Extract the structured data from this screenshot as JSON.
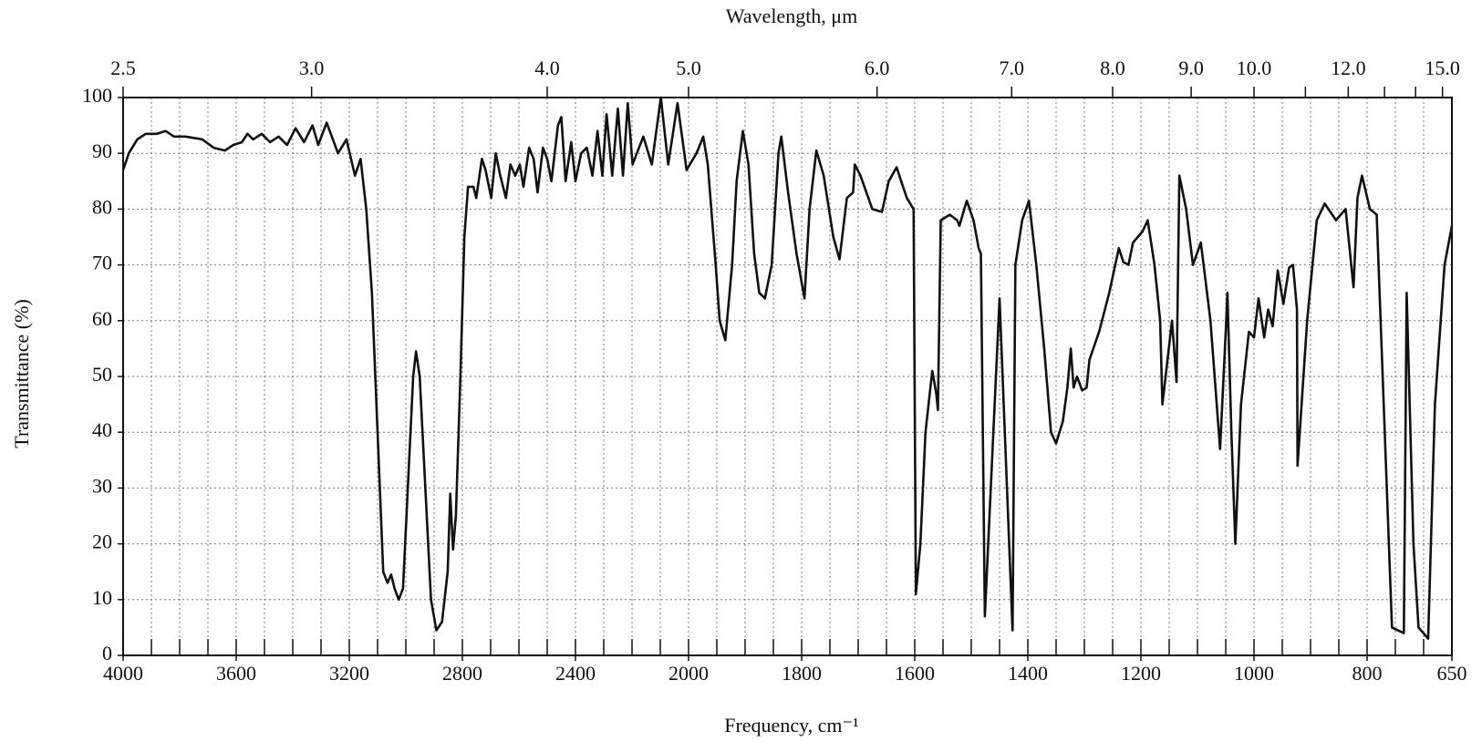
{
  "chart_data": {
    "type": "line",
    "title_top": "Wavelength, μm",
    "xlabel": "Frequency, cm⁻¹",
    "ylabel": "Transmittance (%)",
    "xlim": [
      4000,
      650
    ],
    "x_scale_break": 2000,
    "ylim": [
      0,
      100
    ],
    "xticks": [
      4000,
      3600,
      3200,
      2800,
      2400,
      2000,
      1800,
      1600,
      1400,
      1200,
      1000,
      800,
      650
    ],
    "x_minor_ticks": [
      4000,
      3900,
      3800,
      3700,
      3600,
      3500,
      3400,
      3300,
      3200,
      3100,
      3000,
      2900,
      2800,
      2700,
      2600,
      2500,
      2400,
      2300,
      2200,
      2100,
      2000,
      1950,
      1900,
      1850,
      1800,
      1750,
      1700,
      1650,
      1600,
      1550,
      1500,
      1450,
      1400,
      1350,
      1300,
      1250,
      1200,
      1150,
      1100,
      1050,
      1000,
      950,
      900,
      850,
      800,
      750,
      700
    ],
    "yticks": [
      0,
      10,
      20,
      30,
      40,
      50,
      60,
      70,
      80,
      90,
      100
    ],
    "x2ticks": [
      2.5,
      {
        "value": 3,
        "label": "3.0"
      },
      {
        "value": 4,
        "label": "4.0"
      },
      {
        "value": 5,
        "label": "5.0"
      },
      {
        "value": 6,
        "label": "6.0"
      },
      {
        "value": 7,
        "label": "7.0"
      },
      {
        "value": 8,
        "label": "8.0"
      },
      {
        "value": 9,
        "label": "9.0"
      },
      {
        "value": 10,
        "label": "10.0"
      },
      {
        "value": 12,
        "label": "12.0"
      },
      {
        "value": 15,
        "label": "15.0"
      }
    ],
    "x2_minor_ticks": [
      11,
      13,
      14
    ],
    "grid": true,
    "color": "#111111",
    "x": [
      4000,
      3980,
      3950,
      3920,
      3880,
      3850,
      3820,
      3780,
      3720,
      3680,
      3640,
      3610,
      3580,
      3560,
      3540,
      3510,
      3480,
      3450,
      3420,
      3390,
      3360,
      3330,
      3310,
      3280,
      3240,
      3210,
      3180,
      3160,
      3140,
      3120,
      3100,
      3080,
      3065,
      3052,
      3040,
      3025,
      3010,
      2993,
      2974,
      2964,
      2951,
      2931,
      2911,
      2892,
      2872,
      2852,
      2843,
      2833,
      2823,
      2807,
      2793,
      2780,
      2761,
      2751,
      2731,
      2718,
      2698,
      2682,
      2666,
      2646,
      2630,
      2613,
      2597,
      2584,
      2564,
      2548,
      2534,
      2515,
      2500,
      2485,
      2462,
      2450,
      2435,
      2415,
      2400,
      2380,
      2360,
      2340,
      2322,
      2305,
      2290,
      2270,
      2250,
      2232,
      2215,
      2198,
      2160,
      2130,
      2098,
      2072,
      2039,
      2007,
      1986,
      1974,
      1966,
      1952,
      1945,
      1935,
      1923,
      1915,
      1904,
      1894,
      1884,
      1875,
      1865,
      1853,
      1841,
      1836,
      1824,
      1809,
      1795,
      1786,
      1774,
      1761,
      1744,
      1733,
      1720,
      1709,
      1706,
      1696,
      1675,
      1658,
      1646,
      1632,
      1624,
      1614,
      1602,
      1598,
      1590,
      1581,
      1569,
      1562,
      1559,
      1554,
      1538,
      1525,
      1521,
      1508,
      1496,
      1487,
      1483,
      1476,
      1450,
      1427,
      1422,
      1410,
      1398,
      1385,
      1371,
      1359,
      1350,
      1338,
      1330,
      1324,
      1319,
      1313,
      1304,
      1296,
      1291,
      1274,
      1256,
      1239,
      1231,
      1222,
      1214,
      1197,
      1188,
      1176,
      1166,
      1162,
      1145,
      1137,
      1132,
      1120,
      1108,
      1094,
      1077,
      1060,
      1050,
      1047,
      1040,
      1033,
      1023,
      1009,
      1000,
      992,
      982,
      975,
      967,
      958,
      948,
      938,
      931,
      924,
      923,
      906,
      889,
      875,
      855,
      838,
      824,
      817,
      809,
      795,
      783,
      756,
      735,
      730,
      718,
      709,
      692,
      680,
      663,
      650
    ],
    "values": [
      87,
      90,
      92.5,
      93.5,
      93.5,
      94,
      93,
      93,
      92.5,
      91,
      90.5,
      91.5,
      92,
      93.5,
      92.5,
      93.5,
      92,
      93,
      91.5,
      94.5,
      92,
      95,
      91.5,
      95.5,
      90,
      92.5,
      86,
      89,
      80,
      65,
      40,
      15,
      13,
      14.5,
      12,
      10,
      12,
      30,
      50,
      54.5,
      50,
      30,
      10,
      4.5,
      6,
      15,
      29,
      19,
      25,
      50,
      75,
      84,
      84,
      82,
      89,
      87,
      82,
      90,
      86,
      82,
      88,
      86,
      88,
      84,
      91,
      89,
      83,
      91,
      89,
      85,
      95,
      96.5,
      85,
      92,
      85,
      90,
      91,
      86,
      94,
      86,
      97,
      86,
      98,
      86,
      99,
      88,
      93,
      88,
      100,
      88,
      99,
      87,
      90,
      93,
      88,
      70,
      60,
      56.5,
      70,
      85,
      94,
      88,
      72,
      65,
      64,
      70,
      90,
      93,
      83,
      72,
      64,
      80,
      90.5,
      86,
      75,
      71,
      82,
      83,
      88,
      86,
      80,
      79.5,
      85,
      87.5,
      85,
      82,
      80,
      11,
      20,
      40,
      51,
      47,
      44,
      78,
      79,
      78,
      77,
      81.5,
      78,
      73,
      72,
      7,
      64,
      4.5,
      70,
      78,
      81.5,
      70,
      55,
      40,
      38,
      42,
      48,
      55,
      48,
      50,
      47.5,
      48,
      53,
      58,
      65,
      73,
      70.5,
      70,
      74,
      76,
      78,
      70,
      60,
      45,
      60,
      49,
      86,
      80,
      70,
      74,
      60,
      37,
      58,
      65,
      40,
      20,
      45,
      58,
      57,
      64,
      57,
      62,
      59,
      69,
      63,
      69.5,
      70,
      62,
      34,
      60,
      78,
      81,
      78,
      80,
      66,
      82,
      86,
      80,
      79,
      5,
      4,
      65,
      20,
      5,
      3,
      45,
      70,
      77
    ]
  }
}
